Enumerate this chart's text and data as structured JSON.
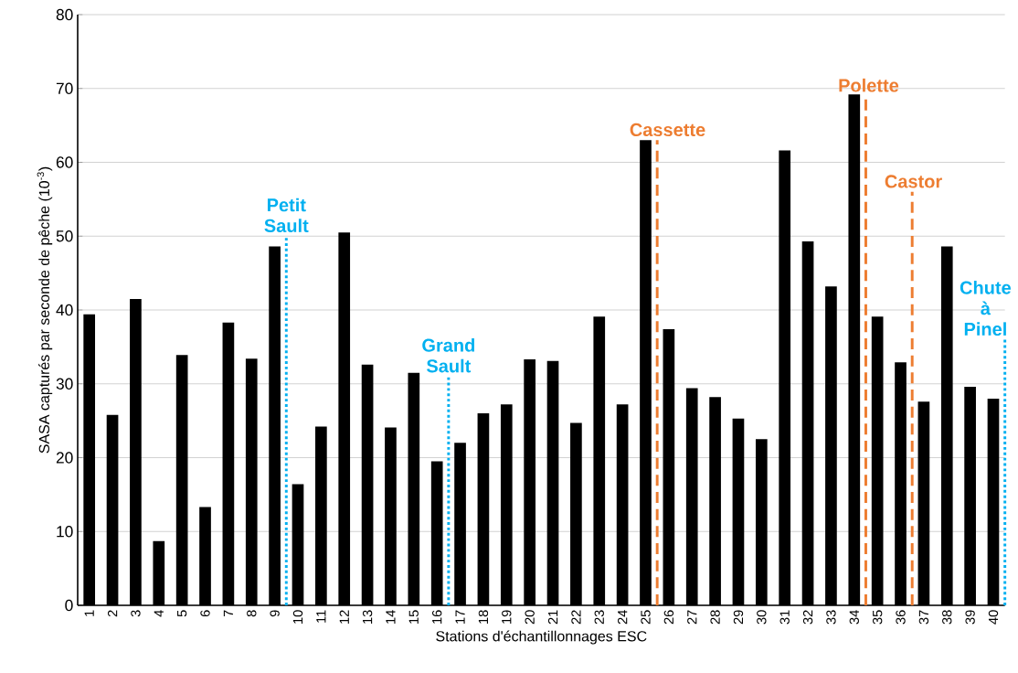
{
  "chart_data": {
    "type": "bar",
    "xlabel": "Stations d'échantillonnages ESC",
    "ylabel": "SASA capturés par seconde de pêche (10$^{-3}$)",
    "x": [
      1,
      2,
      3,
      4,
      5,
      6,
      7,
      8,
      9,
      10,
      11,
      12,
      13,
      14,
      15,
      16,
      17,
      18,
      19,
      20,
      21,
      22,
      23,
      24,
      25,
      26,
      27,
      28,
      29,
      30,
      31,
      32,
      33,
      34,
      35,
      36,
      37,
      38,
      39,
      40
    ],
    "values": [
      39.4,
      25.8,
      41.5,
      8.7,
      33.9,
      13.3,
      38.3,
      33.4,
      48.6,
      16.4,
      24.2,
      50.5,
      32.6,
      24.1,
      31.5,
      19.5,
      22.0,
      26.0,
      27.2,
      33.3,
      33.1,
      24.7,
      39.1,
      27.2,
      63.0,
      37.4,
      29.4,
      28.2,
      25.3,
      22.5,
      61.6,
      49.3,
      43.2,
      69.2,
      39.1,
      32.9,
      27.6,
      48.6,
      29.6,
      28.0
    ],
    "color": "#000000",
    "xlim": [
      0.5,
      40.5
    ],
    "ylim": [
      0,
      80
    ],
    "xticks": [
      1,
      2,
      3,
      4,
      5,
      6,
      7,
      8,
      9,
      10,
      11,
      12,
      13,
      14,
      15,
      16,
      17,
      18,
      19,
      20,
      21,
      22,
      23,
      24,
      25,
      26,
      27,
      28,
      29,
      30,
      31,
      32,
      33,
      34,
      35,
      36,
      37,
      38,
      39,
      40
    ],
    "yticks": [
      0,
      10,
      20,
      30,
      40,
      50,
      60,
      70,
      80
    ],
    "grid": "y",
    "ref_lines": [
      {
        "axis": "x",
        "value": 9.5,
        "color": "#00b0f0",
        "line_style": "dotted"
      },
      {
        "axis": "x",
        "value": 16.5,
        "color": "#00b0f0",
        "line_style": "dotted"
      },
      {
        "axis": "x",
        "value": 25.5,
        "color": "#ed7d31",
        "line_style": "dashed"
      },
      {
        "axis": "x",
        "value": 34.5,
        "color": "#ed7d31",
        "line_style": "dashed"
      },
      {
        "axis": "x",
        "value": 36.5,
        "color": "#ed7d31",
        "line_style": "dashed"
      },
      {
        "axis": "x",
        "value": 40.5,
        "color": "#00b0f0",
        "line_style": "dotted"
      }
    ],
    "annotations": [
      {
        "text": "Petit Sault",
        "x": 9.5,
        "y": 50
      },
      {
        "text": "Grand Sault",
        "x": 16.5,
        "y": 31
      },
      {
        "text": "Cassette",
        "x": 25.5,
        "y": 63
      },
      {
        "text": "Polette",
        "x": 34.5,
        "y": 69
      },
      {
        "text": "Castor",
        "x": 36.5,
        "y": 56
      },
      {
        "text": "Chute à Pinel",
        "x": 40.5,
        "y": 36
      }
    ]
  }
}
